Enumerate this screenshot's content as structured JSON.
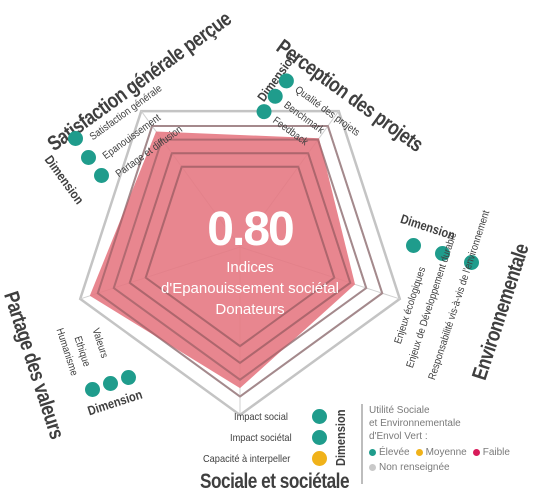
{
  "chart_data": {
    "type": "radar",
    "score": "0.80",
    "score_caption": [
      "Indices",
      "d'Epanouissement sociétal",
      "Donateurs"
    ],
    "axes": [
      "Perception des projets",
      "Environnementale",
      "Sociale et sociétale",
      "Partage des valeurs",
      "Satisfaction générale perçue"
    ],
    "series": [
      {
        "values": [
          0.8,
          0.72,
          0.84,
          0.94,
          0.85
        ],
        "color": "#e57580"
      }
    ],
    "rlim": [
      0,
      1
    ],
    "rings": 5,
    "dimension_label": "Dimension",
    "dimensions": [
      {
        "title": "Perception des projets",
        "items": [
          "Qualité des projets",
          "Benchmark",
          "Feedback"
        ],
        "status": [
          "high",
          "high",
          "high"
        ]
      },
      {
        "title": "Environnementale",
        "items": [
          "Enjeux écologiques",
          "Enjeux de Développement durable",
          "Responsabilité vis-à-vis de l'environnement"
        ],
        "status": [
          "high",
          "high",
          "high"
        ]
      },
      {
        "title": "Sociale et sociétale",
        "items": [
          "Impact social",
          "Impact sociétal",
          "Capacité à interpeller"
        ],
        "status": [
          "high",
          "high",
          "medium"
        ]
      },
      {
        "title": "Partage des valeurs",
        "items": [
          "Valeurs",
          "Ethique",
          "Humanisme"
        ],
        "status": [
          "high",
          "high",
          "high"
        ]
      },
      {
        "title": "Satisfaction générale perçue",
        "items": [
          "Satisfaction générale",
          "Epanouissement",
          "Partage et diffusion"
        ],
        "status": [
          "high",
          "high",
          "high"
        ]
      }
    ]
  },
  "legend": {
    "title_lines": [
      "Utilité Sociale",
      "et Environnementale",
      "d'Envol Vert :"
    ],
    "entries": [
      {
        "label": "Élevée",
        "color": "#1f9c8c",
        "key": "high"
      },
      {
        "label": "Moyenne",
        "color": "#f0b21a",
        "key": "medium"
      },
      {
        "label": "Faible",
        "color": "#d81b5a",
        "key": "low"
      },
      {
        "label": "Non renseignée",
        "color": "#c9c9c9",
        "key": "na"
      }
    ]
  },
  "colors": {
    "fill": "#e57580",
    "ring_strokes": [
      "#c4c4c4",
      "#c4c4c4",
      "#c4c4c4",
      "#7a7a7a",
      "#7a7a7a"
    ],
    "text": "#3f3f3f"
  }
}
